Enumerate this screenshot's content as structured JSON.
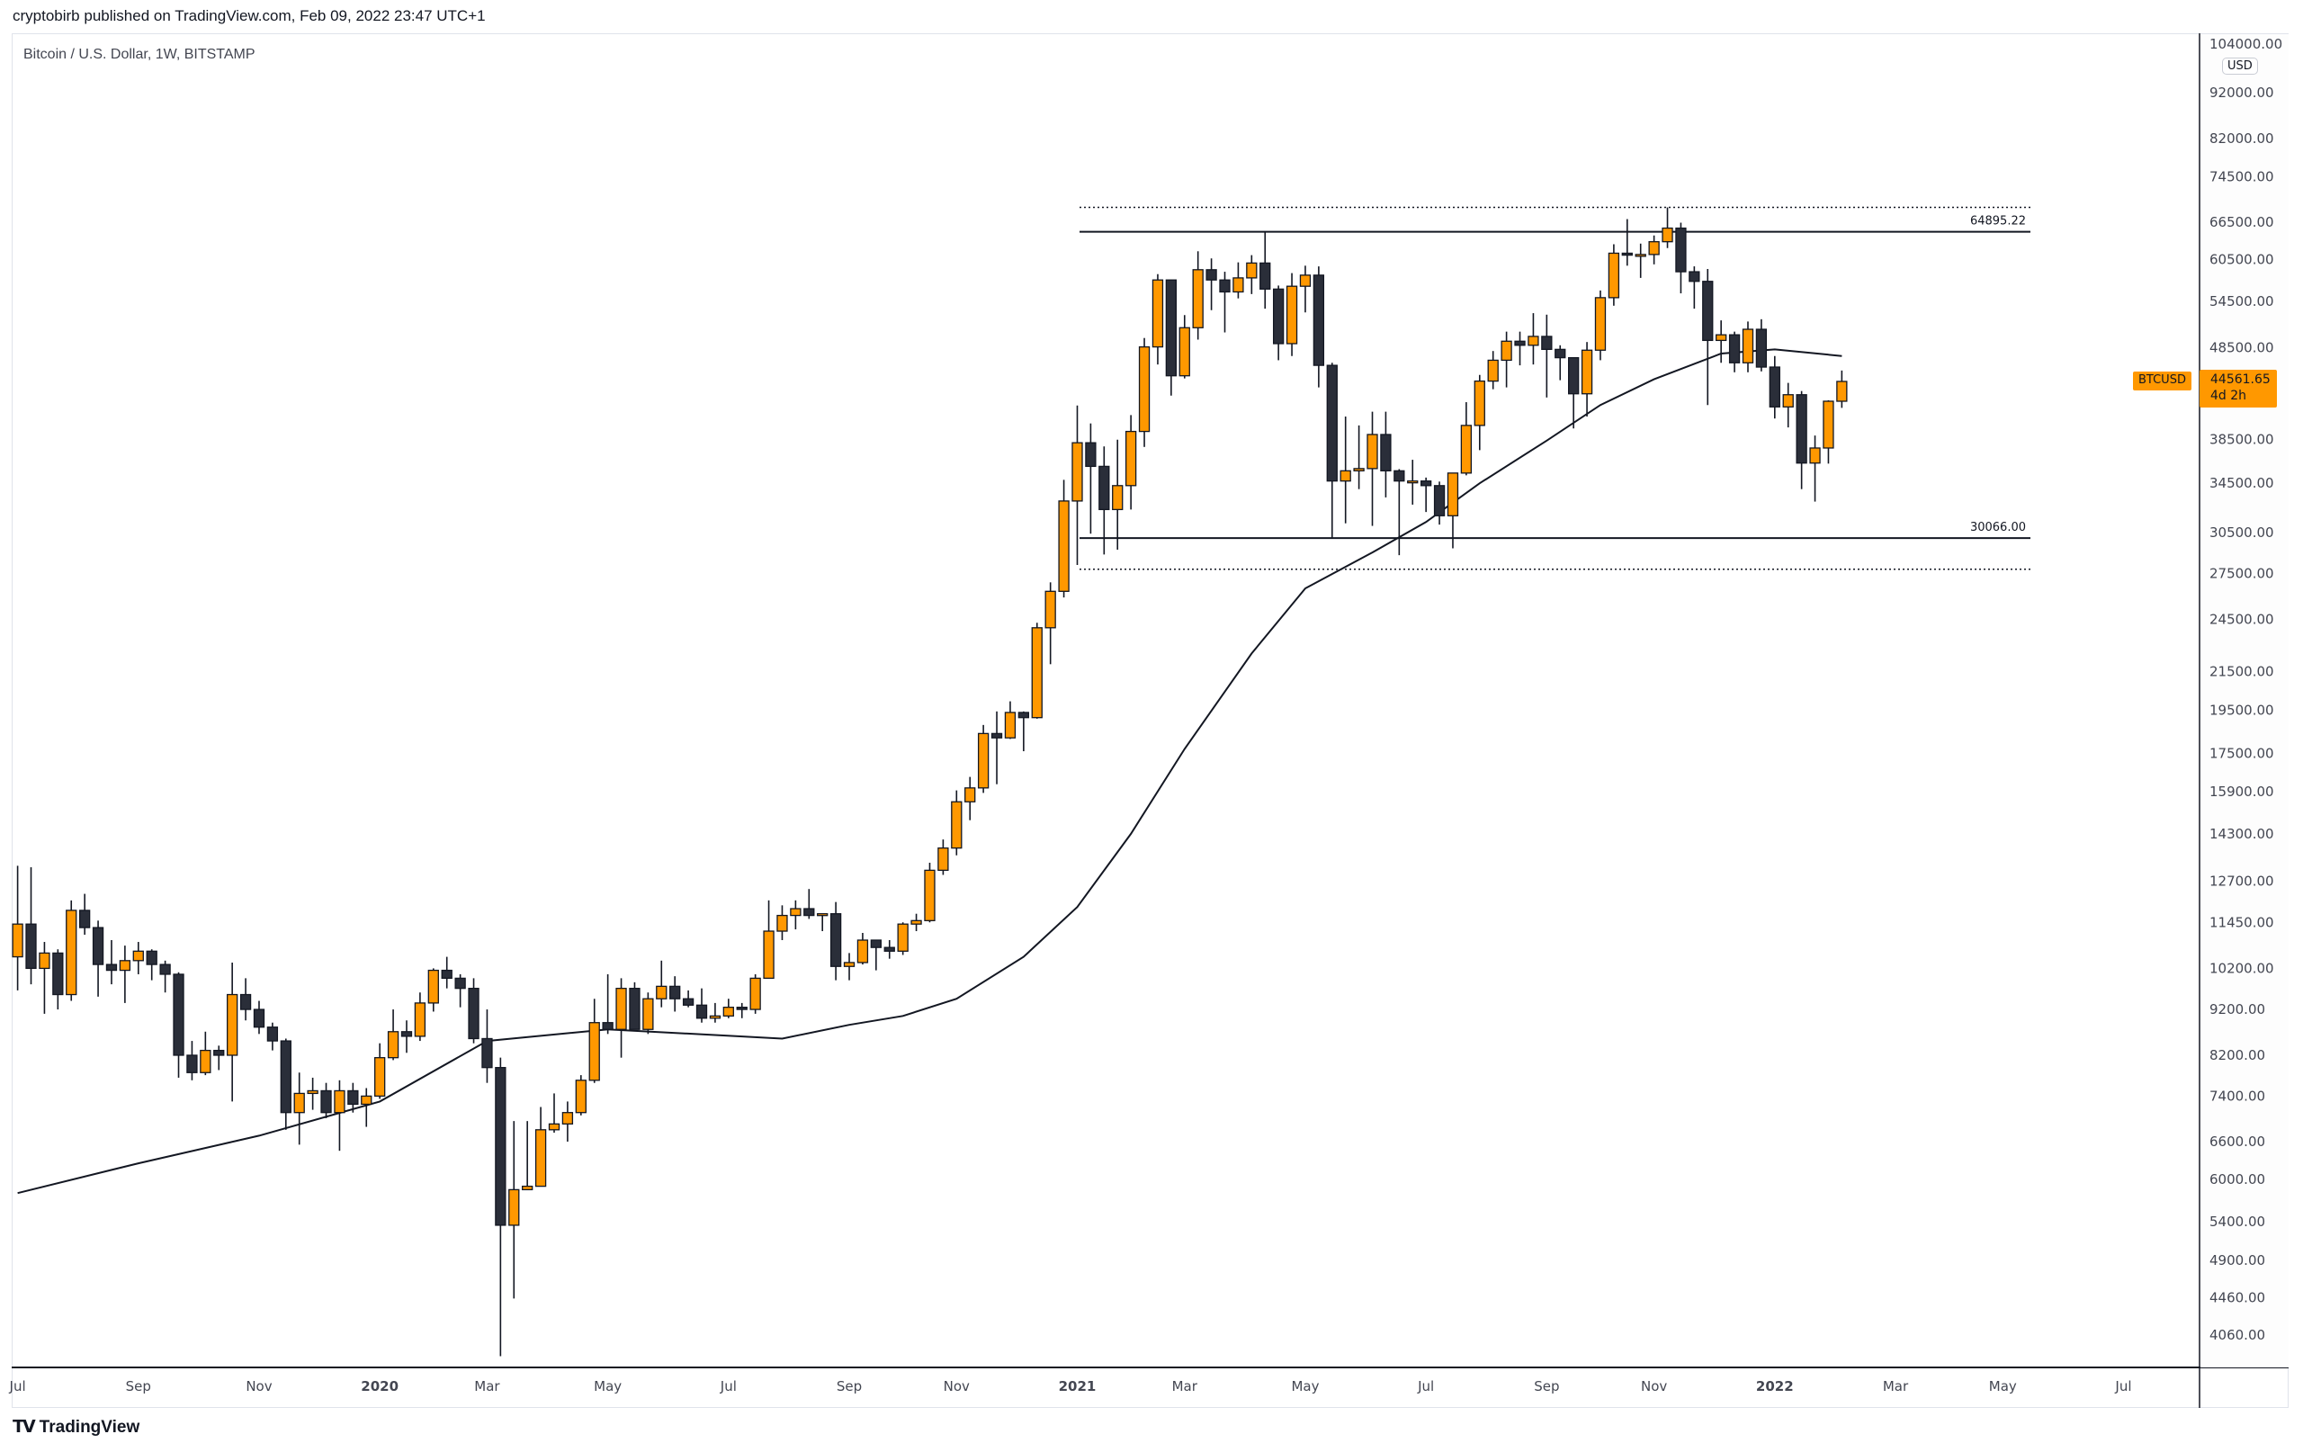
{
  "header": {
    "published": "cryptobirb published on TradingView.com, Feb 09, 2022 23:47 UTC+1",
    "symbol_line": "Bitcoin / U.S. Dollar, 1W, BITSTAMP"
  },
  "footer": {
    "logo_text": "TradingView",
    "logo_mark": "TV"
  },
  "price_axis": {
    "currency": "USD",
    "last_price": "44561.65",
    "countdown": "4d 2h",
    "symbol_tag": "BTCUSD"
  },
  "colors": {
    "bull": "#ff9800",
    "bear": "#2a2e39",
    "wick": "#131722",
    "ma": "#131722",
    "last_price_bg": "#ff9800"
  },
  "chart_data": {
    "type": "candlestick",
    "title": "Bitcoin / U.S. Dollar, 1W, BITSTAMP",
    "y_scale": "log",
    "ylim": [
      3850,
      104000
    ],
    "grid": false,
    "y_ticks": [
      "104000.00",
      "92000.00",
      "82000.00",
      "74500.00",
      "66500.00",
      "60500.00",
      "54500.00",
      "48500.00",
      "38500.00",
      "34500.00",
      "30500.00",
      "27500.00",
      "24500.00",
      "21500.00",
      "19500.00",
      "17500.00",
      "15900.00",
      "14300.00",
      "12700.00",
      "11450.00",
      "10200.00",
      "9200.00",
      "8200.00",
      "7400.00",
      "6600.00",
      "6000.00",
      "5400.00",
      "4900.00",
      "4460.00",
      "4060.00"
    ],
    "x_ticks": [
      {
        "label": "Jul",
        "bold": false
      },
      {
        "label": "Sep",
        "bold": false
      },
      {
        "label": "Nov",
        "bold": false
      },
      {
        "label": "2020",
        "bold": true
      },
      {
        "label": "Mar",
        "bold": false
      },
      {
        "label": "May",
        "bold": false
      },
      {
        "label": "Jul",
        "bold": false
      },
      {
        "label": "Sep",
        "bold": false
      },
      {
        "label": "Nov",
        "bold": false
      },
      {
        "label": "2021",
        "bold": true
      },
      {
        "label": "Mar",
        "bold": false
      },
      {
        "label": "May",
        "bold": false
      },
      {
        "label": "Jul",
        "bold": false
      },
      {
        "label": "Sep",
        "bold": false
      },
      {
        "label": "Nov",
        "bold": false
      },
      {
        "label": "2022",
        "bold": true
      },
      {
        "label": "Mar",
        "bold": false
      },
      {
        "label": "May",
        "bold": false
      },
      {
        "label": "Jul",
        "bold": false
      }
    ],
    "columns": [
      "week",
      "open",
      "high",
      "low",
      "close"
    ],
    "candles": [
      [
        "2019-07-01",
        10500,
        13200,
        9650,
        11400
      ],
      [
        "2019-07-08",
        11400,
        13150,
        9800,
        10200
      ],
      [
        "2019-07-15",
        10200,
        10900,
        9100,
        10600
      ],
      [
        "2019-07-22",
        10600,
        10700,
        9200,
        9550
      ],
      [
        "2019-07-29",
        9550,
        12100,
        9400,
        11800
      ],
      [
        "2019-08-05",
        11800,
        12300,
        11100,
        11300
      ],
      [
        "2019-08-12",
        11300,
        11500,
        9500,
        10300
      ],
      [
        "2019-08-19",
        10300,
        10950,
        9800,
        10150
      ],
      [
        "2019-08-26",
        10150,
        10800,
        9350,
        10400
      ],
      [
        "2019-09-02",
        10400,
        10900,
        10050,
        10650
      ],
      [
        "2019-09-09",
        10650,
        10700,
        9900,
        10300
      ],
      [
        "2019-09-16",
        10300,
        10400,
        9600,
        10050
      ],
      [
        "2019-09-23",
        10050,
        10100,
        7750,
        8200
      ],
      [
        "2019-09-30",
        8200,
        8500,
        7700,
        7850
      ],
      [
        "2019-10-07",
        7850,
        8700,
        7800,
        8300
      ],
      [
        "2019-10-14",
        8300,
        8400,
        7900,
        8200
      ],
      [
        "2019-10-21",
        8200,
        10350,
        7300,
        9550
      ],
      [
        "2019-10-28",
        9550,
        9950,
        8950,
        9200
      ],
      [
        "2019-11-04",
        9200,
        9400,
        8650,
        8800
      ],
      [
        "2019-11-11",
        8800,
        8900,
        8300,
        8500
      ],
      [
        "2019-11-18",
        8500,
        8550,
        6800,
        7100
      ],
      [
        "2019-11-25",
        7100,
        7850,
        6550,
        7450
      ],
      [
        "2019-12-02",
        7450,
        7750,
        7150,
        7500
      ],
      [
        "2019-12-09",
        7500,
        7650,
        7000,
        7100
      ],
      [
        "2019-12-16",
        7100,
        7700,
        6450,
        7500
      ],
      [
        "2019-12-23",
        7500,
        7650,
        7100,
        7250
      ],
      [
        "2019-12-30",
        7250,
        7550,
        6850,
        7400
      ],
      [
        "2020-01-06",
        7400,
        8450,
        7350,
        8150
      ],
      [
        "2020-01-13",
        8150,
        9200,
        8100,
        8700
      ],
      [
        "2020-01-20",
        8700,
        8950,
        8250,
        8600
      ],
      [
        "2020-01-27",
        8600,
        9600,
        8500,
        9350
      ],
      [
        "2020-02-03",
        9350,
        10200,
        9150,
        10150
      ],
      [
        "2020-02-10",
        10150,
        10500,
        9700,
        9950
      ],
      [
        "2020-02-17",
        9950,
        10050,
        9250,
        9700
      ],
      [
        "2020-02-24",
        9700,
        9950,
        8450,
        8550
      ],
      [
        "2020-03-02",
        8550,
        9200,
        7650,
        7950
      ],
      [
        "2020-03-09",
        7950,
        8150,
        3850,
        5350
      ],
      [
        "2020-03-16",
        5350,
        6950,
        4450,
        5850
      ],
      [
        "2020-03-23",
        5850,
        6950,
        5850,
        5900
      ],
      [
        "2020-03-30",
        5900,
        7200,
        5900,
        6800
      ],
      [
        "2020-04-06",
        6800,
        7450,
        6750,
        6900
      ],
      [
        "2020-04-13",
        6900,
        7300,
        6600,
        7100
      ],
      [
        "2020-04-20",
        7100,
        7800,
        7050,
        7700
      ],
      [
        "2020-04-27",
        7700,
        9450,
        7650,
        8900
      ],
      [
        "2020-05-04",
        8900,
        10050,
        8650,
        8750
      ],
      [
        "2020-05-11",
        8750,
        9950,
        8150,
        9700
      ],
      [
        "2020-05-18",
        9700,
        9850,
        8800,
        8750
      ],
      [
        "2020-05-25",
        8750,
        9600,
        8650,
        9450
      ],
      [
        "2020-06-01",
        9450,
        10400,
        9250,
        9750
      ],
      [
        "2020-06-08",
        9750,
        10000,
        9150,
        9450
      ],
      [
        "2020-06-15",
        9450,
        9650,
        9250,
        9300
      ],
      [
        "2020-06-22",
        9300,
        9700,
        8900,
        9000
      ],
      [
        "2020-06-29",
        9000,
        9350,
        8900,
        9050
      ],
      [
        "2020-07-06",
        9050,
        9450,
        9000,
        9250
      ],
      [
        "2020-07-13",
        9250,
        9350,
        9000,
        9200
      ],
      [
        "2020-07-20",
        9200,
        10050,
        9100,
        9950
      ],
      [
        "2020-07-27",
        9950,
        12100,
        9950,
        11200
      ],
      [
        "2020-08-03",
        11200,
        11950,
        10950,
        11650
      ],
      [
        "2020-08-10",
        11650,
        12100,
        11250,
        11850
      ],
      [
        "2020-08-17",
        11850,
        12450,
        11550,
        11650
      ],
      [
        "2020-08-24",
        11650,
        11700,
        11200,
        11700
      ],
      [
        "2020-08-31",
        11700,
        12050,
        9900,
        10250
      ],
      [
        "2020-09-07",
        10250,
        10600,
        9900,
        10350
      ],
      [
        "2020-09-14",
        10350,
        11150,
        10300,
        10950
      ],
      [
        "2020-09-21",
        10950,
        10950,
        10150,
        10750
      ],
      [
        "2020-09-28",
        10750,
        10950,
        10450,
        10650
      ],
      [
        "2020-10-05",
        10650,
        11450,
        10550,
        11400
      ],
      [
        "2020-10-12",
        11400,
        11700,
        11200,
        11500
      ],
      [
        "2020-10-19",
        11500,
        13300,
        11450,
        13050
      ],
      [
        "2020-10-26",
        13050,
        14100,
        12900,
        13800
      ],
      [
        "2020-11-02",
        13800,
        15950,
        13550,
        15500
      ],
      [
        "2020-11-09",
        15500,
        16500,
        14800,
        16050
      ],
      [
        "2020-11-16",
        16050,
        18800,
        15850,
        18400
      ],
      [
        "2020-11-23",
        18400,
        19450,
        16200,
        18200
      ],
      [
        "2020-11-30",
        18200,
        19950,
        18150,
        19400
      ],
      [
        "2020-12-07",
        19400,
        19450,
        17600,
        19150
      ],
      [
        "2020-12-14",
        19150,
        24300,
        19100,
        24000
      ],
      [
        "2020-12-21",
        24000,
        26900,
        21900,
        26300
      ],
      [
        "2020-12-28",
        26300,
        34800,
        25900,
        33000
      ],
      [
        "2021-01-04",
        33000,
        41950,
        28100,
        38200
      ],
      [
        "2021-01-11",
        38200,
        40100,
        30400,
        36000
      ],
      [
        "2021-01-18",
        36000,
        37850,
        28850,
        32300
      ],
      [
        "2021-01-25",
        32300,
        38500,
        29200,
        34300
      ],
      [
        "2021-02-01",
        34300,
        40950,
        32300,
        39300
      ],
      [
        "2021-02-08",
        39300,
        49700,
        37800,
        48600
      ],
      [
        "2021-02-15",
        48600,
        58350,
        46500,
        57500
      ],
      [
        "2021-02-22",
        57500,
        57500,
        43000,
        45200
      ],
      [
        "2021-03-01",
        45200,
        52650,
        44900,
        51000
      ],
      [
        "2021-03-08",
        51000,
        61800,
        49500,
        59000
      ],
      [
        "2021-03-15",
        59000,
        60700,
        53300,
        57500
      ],
      [
        "2021-03-22",
        57500,
        58700,
        50400,
        55800
      ],
      [
        "2021-03-29",
        55800,
        60100,
        54900,
        57800
      ],
      [
        "2021-04-05",
        57800,
        61200,
        55500,
        60000
      ],
      [
        "2021-04-12",
        60000,
        64895,
        53500,
        56200
      ],
      [
        "2021-04-19",
        56200,
        56700,
        47000,
        49000
      ],
      [
        "2021-04-26",
        49000,
        58500,
        47500,
        56600
      ],
      [
        "2021-05-03",
        56600,
        59600,
        53000,
        58200
      ],
      [
        "2021-05-10",
        58200,
        59500,
        43900,
        46400
      ],
      [
        "2021-05-17",
        46400,
        46700,
        30066,
        34700
      ],
      [
        "2021-05-24",
        34700,
        40800,
        31200,
        35600
      ],
      [
        "2021-05-31",
        35600,
        39900,
        34000,
        35800
      ],
      [
        "2021-06-07",
        35800,
        41300,
        31000,
        39000
      ],
      [
        "2021-06-14",
        39000,
        41300,
        33300,
        35600
      ],
      [
        "2021-06-21",
        35600,
        35750,
        28800,
        34700
      ],
      [
        "2021-06-28",
        34700,
        36600,
        32700,
        34700
      ],
      [
        "2021-07-05",
        34700,
        35000,
        32100,
        34300
      ],
      [
        "2021-07-12",
        34300,
        34650,
        31100,
        31800
      ],
      [
        "2021-07-19",
        31800,
        35400,
        29300,
        35400
      ],
      [
        "2021-07-26",
        35400,
        42300,
        35200,
        39900
      ],
      [
        "2021-08-02",
        39900,
        45300,
        37500,
        44600
      ],
      [
        "2021-08-09",
        44600,
        48100,
        43700,
        47000
      ],
      [
        "2021-08-16",
        47000,
        50500,
        43900,
        49300
      ],
      [
        "2021-08-23",
        49300,
        50500,
        46400,
        48800
      ],
      [
        "2021-08-30",
        48800,
        52900,
        46500,
        49900
      ],
      [
        "2021-09-06",
        49900,
        52700,
        42800,
        48300
      ],
      [
        "2021-09-13",
        48300,
        48800,
        44700,
        47300
      ],
      [
        "2021-09-20",
        47300,
        47300,
        39600,
        43200
      ],
      [
        "2021-09-27",
        43200,
        49200,
        40800,
        48200
      ],
      [
        "2021-10-04",
        48200,
        56000,
        47000,
        55000
      ],
      [
        "2021-10-11",
        55000,
        62900,
        53900,
        61500
      ],
      [
        "2021-10-18",
        61500,
        67000,
        59600,
        61200
      ],
      [
        "2021-10-25",
        61200,
        63000,
        57800,
        61300
      ],
      [
        "2021-11-01",
        61300,
        64300,
        59800,
        63300
      ],
      [
        "2021-11-08",
        63300,
        69000,
        62300,
        65500
      ],
      [
        "2021-11-15",
        65500,
        66400,
        55600,
        58700
      ],
      [
        "2021-11-22",
        58700,
        59500,
        53500,
        57300
      ],
      [
        "2021-11-29",
        57300,
        59100,
        42000,
        49400
      ],
      [
        "2021-12-06",
        49400,
        51950,
        46700,
        50100
      ],
      [
        "2021-12-13",
        50100,
        50500,
        45600,
        46700
      ],
      [
        "2021-12-20",
        46700,
        51800,
        45600,
        50800
      ],
      [
        "2021-12-27",
        50800,
        52100,
        45700,
        46200
      ],
      [
        "2022-01-03",
        46200,
        47500,
        40600,
        41800
      ],
      [
        "2022-01-10",
        41800,
        44400,
        39700,
        43100
      ],
      [
        "2022-01-17",
        43100,
        43500,
        34000,
        36300
      ],
      [
        "2022-01-24",
        36300,
        38900,
        32950,
        37700
      ],
      [
        "2022-01-31",
        37700,
        42500,
        36250,
        42400
      ],
      [
        "2022-02-07",
        42400,
        45800,
        41700,
        44561.65
      ]
    ],
    "moving_average": [
      [
        "2019-07-01",
        5800
      ],
      [
        "2019-09-02",
        6250
      ],
      [
        "2019-11-04",
        6700
      ],
      [
        "2020-01-06",
        7300
      ],
      [
        "2020-03-02",
        8500
      ],
      [
        "2020-05-04",
        8750
      ],
      [
        "2020-08-03",
        8550
      ],
      [
        "2020-09-07",
        8850
      ],
      [
        "2020-10-05",
        9050
      ],
      [
        "2020-11-02",
        9450
      ],
      [
        "2020-12-07",
        10500
      ],
      [
        "2021-01-04",
        11900
      ],
      [
        "2021-02-01",
        14300
      ],
      [
        "2021-03-01",
        17700
      ],
      [
        "2021-04-05",
        22500
      ],
      [
        "2021-05-03",
        26500
      ],
      [
        "2021-06-07",
        29000
      ],
      [
        "2021-07-05",
        31300
      ],
      [
        "2021-08-02",
        34500
      ],
      [
        "2021-09-06",
        38400
      ],
      [
        "2021-10-04",
        42000
      ],
      [
        "2021-11-01",
        44800
      ],
      [
        "2021-12-06",
        47800
      ],
      [
        "2022-01-03",
        48300
      ],
      [
        "2022-02-07",
        47500
      ]
    ],
    "levels": [
      {
        "price": 64895.22,
        "label": "64895.22",
        "style": "solid"
      },
      {
        "price": 30066.0,
        "label": "30066.00",
        "style": "solid"
      },
      {
        "price": 69000,
        "label": "",
        "style": "dotted"
      },
      {
        "price": 27800,
        "label": "",
        "style": "dotted"
      }
    ]
  }
}
